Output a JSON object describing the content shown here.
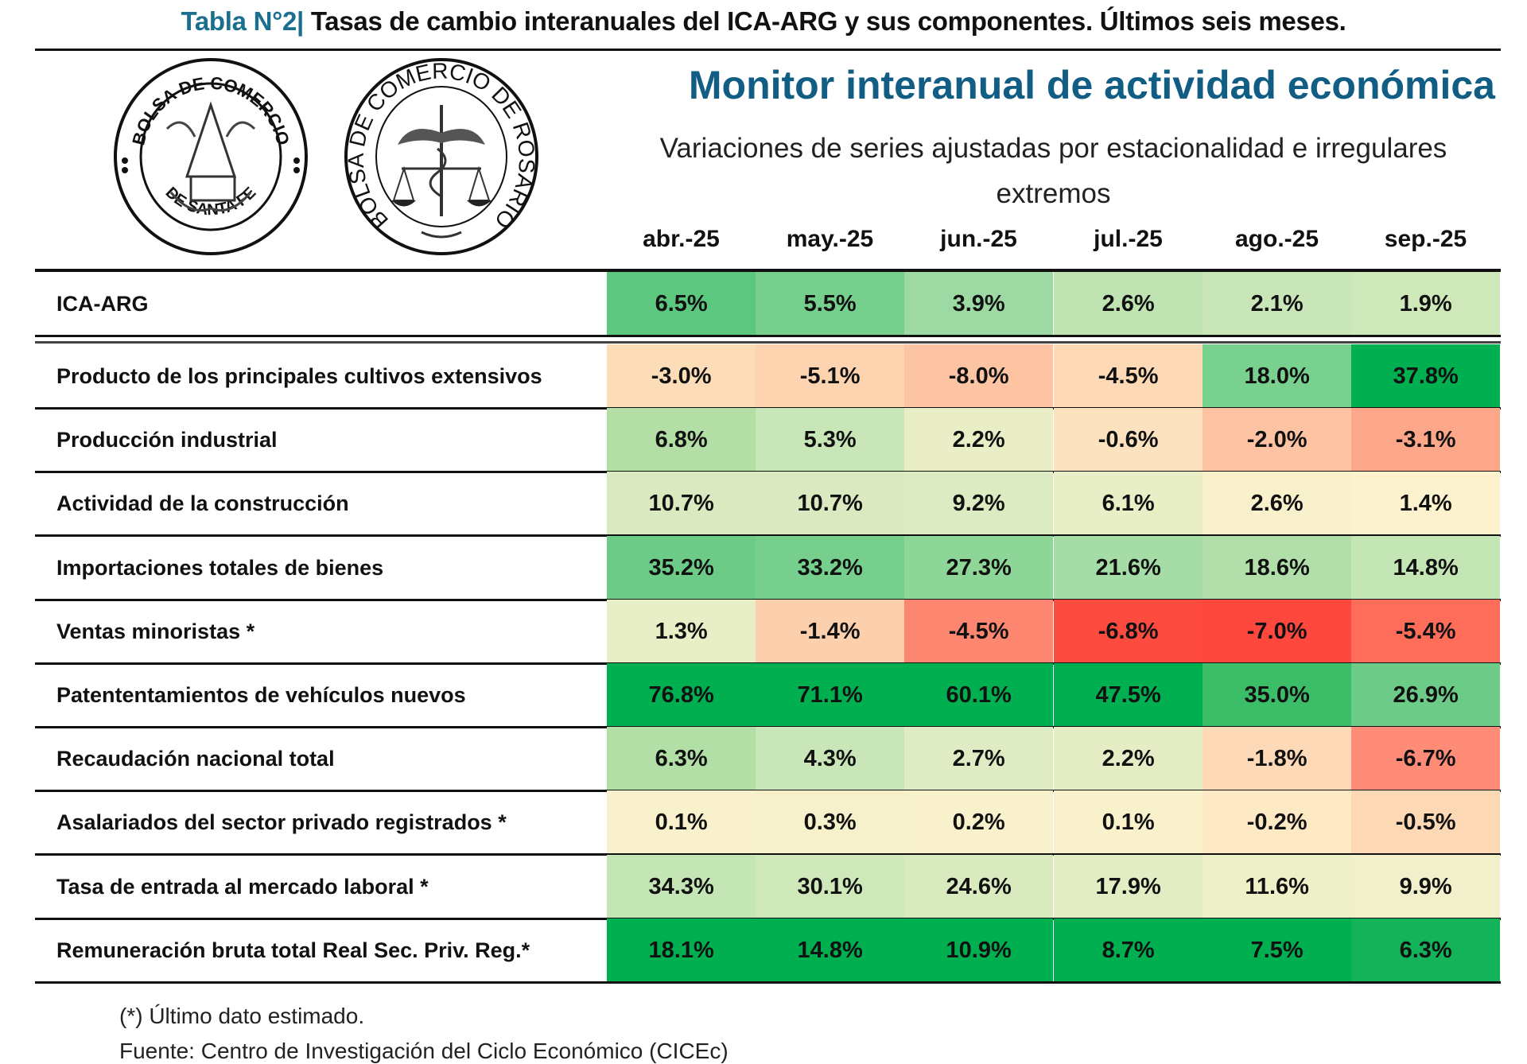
{
  "header": {
    "table_number": "Tabla N°2|",
    "table_title": "Tasas de cambio interanuales del ICA-ARG y sus componentes. Últimos seis meses.",
    "monitor_title": "Monitor interanual de actividad económica",
    "subtitle": "Variaciones de series ajustadas por estacionalidad e irregulares extremos"
  },
  "logos": {
    "left": {
      "top_text": "BOLSA DE COMERCIO",
      "bottom_text": "DE SANTA FE"
    },
    "right": {
      "ring_text": "BOLSA DE COMERCIO DE ROSARIO"
    }
  },
  "table": {
    "months": [
      "abr.-25",
      "may.-25",
      "jun.-25",
      "jul.-25",
      "ago.-25",
      "sep.-25"
    ],
    "rows": [
      {
        "label": "ICA-ARG",
        "values": [
          "6.5%",
          "5.5%",
          "3.9%",
          "2.6%",
          "2.1%",
          "1.9%"
        ],
        "colors": [
          "#5cc77e",
          "#76cf8d",
          "#9dd9a2",
          "#bfe3b1",
          "#c8e6b7",
          "#cfe8ba"
        ]
      },
      {
        "label": "Producto de los principales cultivos extensivos",
        "values": [
          "-3.0%",
          "-5.1%",
          "-8.0%",
          "-4.5%",
          "18.0%",
          "37.8%"
        ],
        "colors": [
          "#fddcb8",
          "#fdd3b0",
          "#fcc4a2",
          "#fdd9b5",
          "#78d18f",
          "#00b050"
        ]
      },
      {
        "label": "Producción industrial",
        "values": [
          "6.8%",
          "5.3%",
          "2.2%",
          "-0.6%",
          "-2.0%",
          "-3.1%"
        ],
        "colors": [
          "#b3dfa6",
          "#c8e6b7",
          "#eaeec6",
          "#fde2bf",
          "#fdc3a3",
          "#fca78a"
        ]
      },
      {
        "label": "Actividad de la construcción",
        "values": [
          "10.7%",
          "10.7%",
          "9.2%",
          "6.1%",
          "2.6%",
          "1.4%"
        ],
        "colors": [
          "#dae9bf",
          "#dae9bf",
          "#dcebc1",
          "#e8efc6",
          "#f8f1cc",
          "#fcf2cd"
        ]
      },
      {
        "label": "Importaciones totales de bienes",
        "values": [
          "35.2%",
          "33.2%",
          "27.3%",
          "21.6%",
          "18.6%",
          "14.8%"
        ],
        "colors": [
          "#6dcb88",
          "#76cf8d",
          "#8ed697",
          "#a6dca5",
          "#b2dfa9",
          "#c4e5b4"
        ]
      },
      {
        "label": "Ventas minoristas *",
        "values": [
          "1.3%",
          "-1.4%",
          "-4.5%",
          "-6.8%",
          "-7.0%",
          "-5.4%"
        ],
        "colors": [
          "#e8efc6",
          "#fdd0ad",
          "#fd8670",
          "#fe4b40",
          "#fe483e",
          "#fe6c5a"
        ]
      },
      {
        "label": "Patententamientos de vehículos nuevos",
        "values": [
          "76.8%",
          "71.1%",
          "60.1%",
          "47.5%",
          "35.0%",
          "26.9%"
        ],
        "colors": [
          "#00b050",
          "#00b050",
          "#00b050",
          "#00b050",
          "#3cbd68",
          "#6dcb88"
        ]
      },
      {
        "label": "Recaudación nacional total",
        "values": [
          "6.3%",
          "4.3%",
          "2.7%",
          "2.2%",
          "-1.8%",
          "-6.7%"
        ],
        "colors": [
          "#b2dfa6",
          "#c8e6b7",
          "#dfebc2",
          "#e5edc5",
          "#fdd9b8",
          "#fe8c76"
        ]
      },
      {
        "label": "Asalariados del sector privado registrados *",
        "values": [
          "0.1%",
          "0.3%",
          "0.2%",
          "0.1%",
          "-0.2%",
          "-0.5%"
        ],
        "colors": [
          "#f8f1cc",
          "#f6f1cb",
          "#f8f1cc",
          "#f8f1cc",
          "#fde9c4",
          "#fdd8b5"
        ]
      },
      {
        "label": "Tasa de entrada al mercado laboral *",
        "values": [
          "34.3%",
          "30.1%",
          "24.6%",
          "17.9%",
          "11.6%",
          "9.9%"
        ],
        "colors": [
          "#c4e5b4",
          "#cfe8ba",
          "#d8eabe",
          "#e3edc4",
          "#eef0c8",
          "#f2f0ca"
        ]
      },
      {
        "label": "Remuneración bruta total Real Sec. Priv. Reg.*",
        "values": [
          "18.1%",
          "14.8%",
          "10.9%",
          "8.7%",
          "7.5%",
          "6.3%"
        ],
        "colors": [
          "#00b050",
          "#00b050",
          "#00b050",
          "#00b050",
          "#00b050",
          "#14b35a"
        ]
      }
    ]
  },
  "footer": {
    "note": "(*) Último dato estimado.",
    "source": "Fuente: Centro de Investigación del Ciclo Económico (CICEc)"
  },
  "colors": {
    "title_accent": "#1a6e8e",
    "monitor_title": "#115d84"
  }
}
